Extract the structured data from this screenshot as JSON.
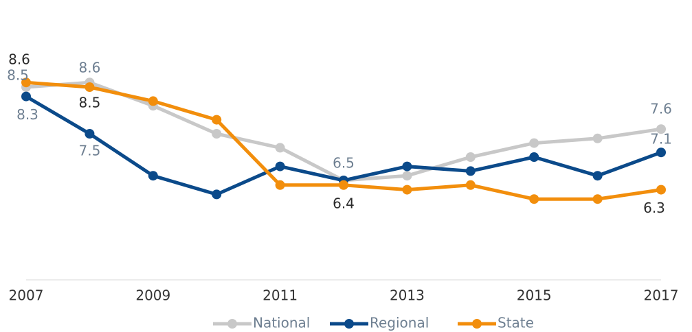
{
  "chart_data": {
    "type": "line",
    "x": [
      2007,
      2008,
      2009,
      2010,
      2011,
      2012,
      2013,
      2014,
      2015,
      2016,
      2017
    ],
    "xlim": [
      2007,
      2017
    ],
    "xticks": [
      2007,
      2009,
      2011,
      2013,
      2015,
      2017
    ],
    "ylim": [
      4.4,
      9.2
    ],
    "series": [
      {
        "name": "National",
        "color": "#c8c8c8",
        "values": [
          8.5,
          8.6,
          8.1,
          7.5,
          7.2,
          6.5,
          6.6,
          7.0,
          7.3,
          7.4,
          7.6
        ],
        "value_labels": [
          "8.5",
          "8.6",
          null,
          null,
          null,
          null,
          null,
          null,
          null,
          null,
          "7.6"
        ]
      },
      {
        "name": "Regional",
        "color": "#0b4a8a",
        "values": [
          8.3,
          7.5,
          6.6,
          6.2,
          6.8,
          6.5,
          6.8,
          6.7,
          7.0,
          6.6,
          7.1
        ],
        "value_labels": [
          "8.3",
          "7.5",
          null,
          null,
          null,
          "6.5",
          null,
          null,
          null,
          null,
          "7.1"
        ]
      },
      {
        "name": "State",
        "color": "#f28e0c",
        "values": [
          8.6,
          8.5,
          8.2,
          7.8,
          6.4,
          6.4,
          6.3,
          6.4,
          6.1,
          6.1,
          6.3
        ],
        "value_labels": [
          "8.6",
          "8.5",
          null,
          null,
          null,
          "6.4",
          null,
          null,
          null,
          null,
          "6.3"
        ]
      }
    ],
    "legend": "bottom"
  }
}
